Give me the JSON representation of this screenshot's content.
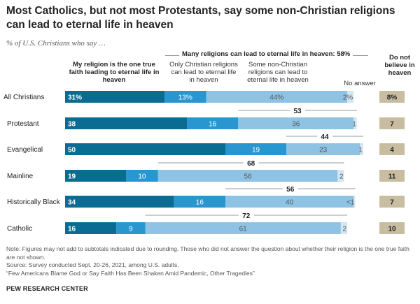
{
  "title": "Most Catholics, but not most Protestants, say some non-Christian religions can lead to eternal life in heaven",
  "subtitle": "% of U.S. Christians who say …",
  "headers": {
    "one_true_faith": "My religion is the one true faith leading to eternal life in heaven",
    "only_christian": "Only Christian religions can lead to eternal life in heaven",
    "some_non_christian": "Some non-Christian religions can lead to eternal life in heaven",
    "no_answer": "No answer",
    "do_not_believe": "Do not believe in heaven",
    "many_religions_summary": "Many religions can lead to eternal life in heaven: 58%"
  },
  "chart_data": {
    "type": "bar",
    "orientation": "horizontal-stacked",
    "categories": [
      "All Christians",
      "Protestant",
      "Evangelical",
      "Mainline",
      "Historically Black",
      "Catholic"
    ],
    "series": [
      {
        "name": "My religion is the one true faith leading to eternal life in heaven",
        "color": "#0b6c93",
        "values": [
          31,
          38,
          50,
          19,
          34,
          16
        ],
        "labels": [
          "31%",
          "38",
          "50",
          "19",
          "34",
          "16"
        ]
      },
      {
        "name": "Only Christian religions can lead to eternal life in heaven",
        "color": "#2996d0",
        "values": [
          13,
          16,
          19,
          10,
          16,
          9
        ],
        "labels": [
          "13%",
          "16",
          "19",
          "10",
          "16",
          "9"
        ]
      },
      {
        "name": "Some non-Christian religions can lead to eternal life in heaven",
        "color": "#8ec3e4",
        "values": [
          44,
          36,
          23,
          56,
          40,
          61
        ],
        "labels": [
          "44%",
          "36",
          "23",
          "56",
          "40",
          "61"
        ]
      },
      {
        "name": "No answer",
        "color": "#d3e6f2",
        "values": [
          2,
          1,
          1,
          2,
          0.5,
          2
        ],
        "labels": [
          "2%",
          "1",
          "1",
          "2",
          "<1",
          "2"
        ]
      },
      {
        "name": "Do not believe in heaven",
        "color": "#c8bda0",
        "values": [
          8,
          7,
          4,
          11,
          7,
          10
        ],
        "labels": [
          "8%",
          "7",
          "4",
          "11",
          "7",
          "10"
        ]
      }
    ],
    "many_religions_totals": [
      58,
      53,
      44,
      68,
      56,
      72
    ],
    "many_religions_labels": [
      "58%",
      "53",
      "44",
      "68",
      "56",
      "72"
    ]
  },
  "notes": [
    "Note: Figures may not add to subtotals indicated due to rounding. Those who did not answer the question about whether their religion is the one true faith are not shown.",
    "Source: Survey conducted Sept. 20-26, 2021, among U.S. adults.",
    "“Few Americans Blame God or Say Faith Has Been Shaken Amid Pandemic, Other Tragedies”"
  ],
  "footer": "PEW RESEARCH CENTER"
}
